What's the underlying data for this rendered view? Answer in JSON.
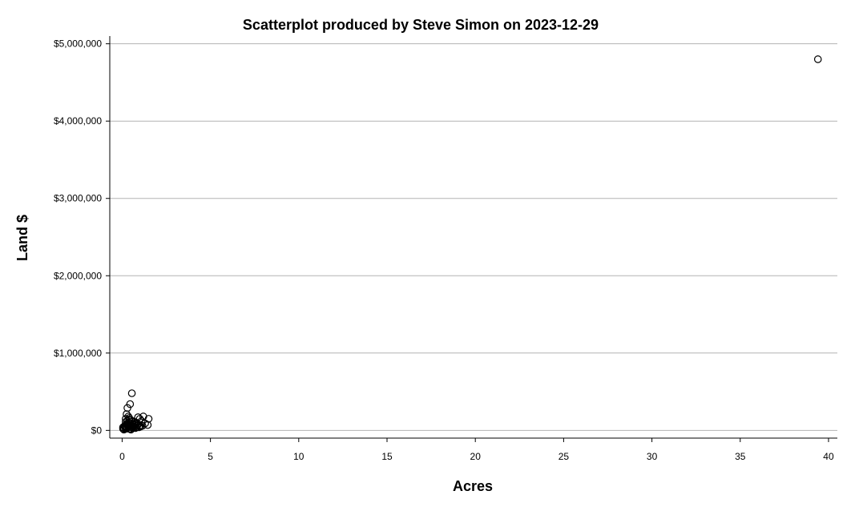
{
  "chart_data": {
    "type": "scatter",
    "title": "Scatterplot produced by Steve Simon on 2023-12-29",
    "xlabel": "Acres",
    "ylabel": "Land $",
    "xlim": [
      -0.7,
      40.5
    ],
    "ylim": [
      -100000,
      5100000
    ],
    "x_ticks": [
      0,
      5,
      10,
      15,
      20,
      25,
      30,
      35,
      40
    ],
    "y_ticks": [
      0,
      1000000,
      2000000,
      3000000,
      4000000,
      5000000
    ],
    "y_tick_labels": [
      "$0",
      "$1,000,000",
      "$2,000,000",
      "$3,000,000",
      "$4,000,000",
      "$5,000,000"
    ],
    "grid": "horizontal",
    "legend": "none",
    "series": [
      {
        "marker": "open-circle",
        "x": [
          39.4,
          0.55,
          0.45,
          0.3,
          0.25,
          0.35,
          0.2,
          0.4,
          0.5,
          0.6,
          0.7,
          0.8,
          0.9,
          1.0,
          1.1,
          1.2,
          1.3,
          1.5,
          1.45,
          1.0,
          0.9,
          0.8,
          0.7,
          0.6,
          0.5,
          0.4,
          0.3,
          0.2,
          0.1,
          0.05,
          0.15,
          0.25,
          0.35,
          0.45,
          0.55,
          0.65,
          0.75,
          0.85,
          0.95,
          0.1,
          0.2,
          0.3,
          0.4,
          0.5,
          0.6,
          0.3,
          0.4,
          0.15,
          0.05,
          0.2,
          0.35,
          0.25,
          0.5,
          0.6,
          0.7,
          0.8,
          1.05,
          1.15,
          0.45,
          0.55
        ],
        "y": [
          4800000,
          480000,
          340000,
          290000,
          210000,
          180000,
          150000,
          160000,
          130000,
          120000,
          110000,
          100000,
          170000,
          150000,
          120000,
          180000,
          90000,
          150000,
          70000,
          60000,
          80000,
          90000,
          70000,
          60000,
          50000,
          60000,
          70000,
          40000,
          30000,
          20000,
          50000,
          80000,
          100000,
          90000,
          40000,
          50000,
          30000,
          60000,
          40000,
          10000,
          20000,
          30000,
          20000,
          10000,
          30000,
          120000,
          140000,
          60000,
          40000,
          110000,
          50000,
          40000,
          70000,
          80000,
          90000,
          40000,
          50000,
          60000,
          20000,
          110000
        ]
      }
    ]
  }
}
